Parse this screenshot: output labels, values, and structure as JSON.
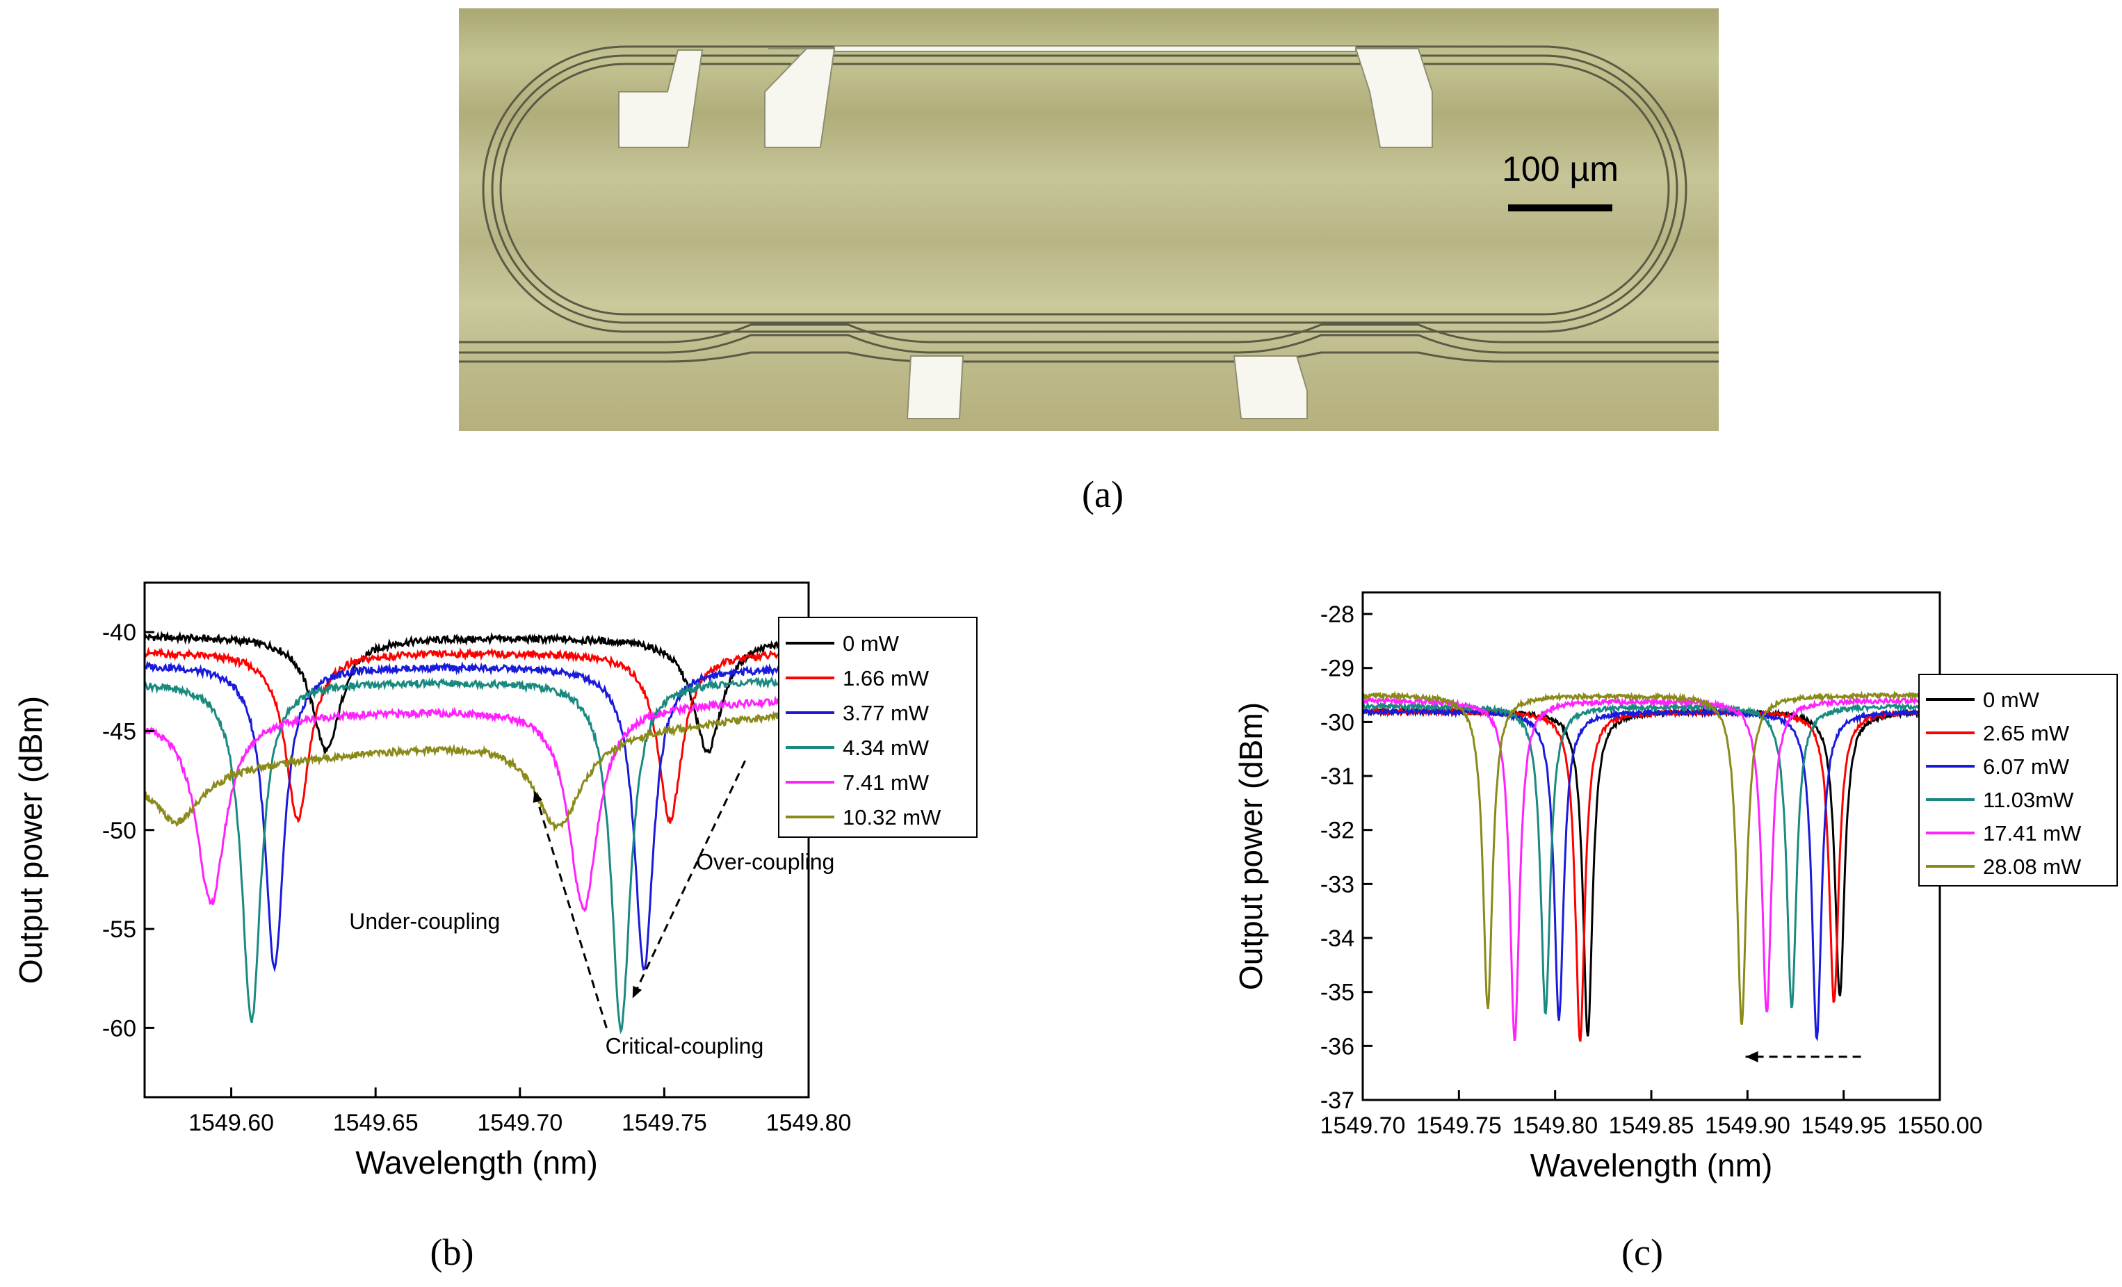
{
  "panel_a": {
    "caption": "(a)",
    "scale_bar_label": "100 µm"
  },
  "panel_b": {
    "caption": "(b)"
  },
  "panel_c": {
    "caption": "(c)"
  },
  "chart_data": [
    {
      "panel": "b",
      "type": "line",
      "xlabel": "Wavelength (nm)",
      "ylabel": "Output power (dBm)",
      "xlim": [
        1549.57,
        1549.8
      ],
      "ylim": [
        -63.5,
        -37.5
      ],
      "xticks": [
        "1549.60",
        "1549.65",
        "1549.70",
        "1549.75",
        "1549.80"
      ],
      "xtick_values": [
        1549.6,
        1549.65,
        1549.7,
        1549.75,
        1549.8
      ],
      "yticks": [
        "-40",
        "-45",
        "-50",
        "-55",
        "-60"
      ],
      "ytick_values": [
        -40,
        -45,
        -50,
        -55,
        -60
      ],
      "legend_position": "top-right",
      "annotations": [
        "Under-coupling",
        "Over-coupling",
        "Critical-coupling"
      ],
      "series": [
        {
          "name": "0 mW",
          "color": "#000000",
          "baseline_left": -40.2,
          "baseline_right": -40.3,
          "dips": [
            {
              "x": 1549.633,
              "depth": -46.0,
              "w": 0.006
            },
            {
              "x": 1549.765,
              "depth": -46.0,
              "w": 0.006
            }
          ]
        },
        {
          "name": "1.66 mW",
          "color": "#ff0000",
          "baseline_left": -41.0,
          "baseline_right": -41.0,
          "dips": [
            {
              "x": 1549.623,
              "depth": -49.5,
              "w": 0.005
            },
            {
              "x": 1549.752,
              "depth": -49.5,
              "w": 0.005
            }
          ]
        },
        {
          "name": "3.77 mW",
          "color": "#1a1adb",
          "baseline_left": -41.6,
          "baseline_right": -41.8,
          "dips": [
            {
              "x": 1549.615,
              "depth": -57.0,
              "w": 0.004
            },
            {
              "x": 1549.743,
              "depth": -57.0,
              "w": 0.004
            }
          ]
        },
        {
          "name": "4.34 mW",
          "color": "#1a8a80",
          "baseline_left": -42.5,
          "baseline_right": -42.4,
          "dips": [
            {
              "x": 1549.607,
              "depth": -59.7,
              "w": 0.004
            },
            {
              "x": 1549.735,
              "depth": -60.0,
              "w": 0.004
            }
          ]
        },
        {
          "name": "7.41 mW",
          "color": "#ff22ff",
          "baseline_left": -44.3,
          "baseline_right": -43.4,
          "dips": [
            {
              "x": 1549.593,
              "depth": -53.7,
              "w": 0.006
            },
            {
              "x": 1549.722,
              "depth": -54.0,
              "w": 0.006
            }
          ]
        },
        {
          "name": "10.32 mW",
          "color": "#8a8a1a",
          "baseline_left": -47.0,
          "baseline_right": -44.0,
          "dips": [
            {
              "x": 1549.581,
              "depth": -49.6,
              "w": 0.01
            },
            {
              "x": 1549.713,
              "depth": -49.8,
              "w": 0.01
            }
          ]
        }
      ]
    },
    {
      "panel": "c",
      "type": "line",
      "xlabel": "Wavelength (nm)",
      "ylabel": "Output power (dBm)",
      "xlim": [
        1549.7,
        1550.0
      ],
      "ylim": [
        -37,
        -27.6
      ],
      "xticks": [
        "1549.70",
        "1549.75",
        "1549.80",
        "1549.85",
        "1549.90",
        "1549.95",
        "1550.00"
      ],
      "xtick_values": [
        1549.7,
        1549.75,
        1549.8,
        1549.85,
        1549.9,
        1549.95,
        1550.0
      ],
      "yticks": [
        "-28",
        "-29",
        "-30",
        "-31",
        "-32",
        "-33",
        "-34",
        "-35",
        "-36",
        "-37"
      ],
      "ytick_values": [
        -28,
        -29,
        -30,
        -31,
        -32,
        -33,
        -34,
        -35,
        -36,
        -37
      ],
      "legend_position": "right",
      "annotations": [],
      "series": [
        {
          "name": "0 mW",
          "color": "#000000",
          "baseline": -29.8,
          "dips": [
            {
              "x": 1549.817,
              "depth": -35.8,
              "w": 0.003
            },
            {
              "x": 1549.948,
              "depth": -35.1,
              "w": 0.003
            }
          ]
        },
        {
          "name": "2.65 mW",
          "color": "#ff0000",
          "baseline": -29.8,
          "dips": [
            {
              "x": 1549.813,
              "depth": -35.9,
              "w": 0.003
            },
            {
              "x": 1549.945,
              "depth": -35.2,
              "w": 0.003
            }
          ]
        },
        {
          "name": "6.07 mW",
          "color": "#1a1adb",
          "baseline": -29.8,
          "dips": [
            {
              "x": 1549.802,
              "depth": -35.5,
              "w": 0.003
            },
            {
              "x": 1549.936,
              "depth": -35.9,
              "w": 0.003
            }
          ]
        },
        {
          "name": "11.03mW",
          "color": "#1a8a80",
          "baseline": -29.7,
          "dips": [
            {
              "x": 1549.795,
              "depth": -35.4,
              "w": 0.003
            },
            {
              "x": 1549.923,
              "depth": -35.3,
              "w": 0.003
            }
          ]
        },
        {
          "name": "17.41 mW",
          "color": "#ff22ff",
          "baseline": -29.6,
          "dips": [
            {
              "x": 1549.779,
              "depth": -35.9,
              "w": 0.003
            },
            {
              "x": 1549.91,
              "depth": -35.4,
              "w": 0.003
            }
          ]
        },
        {
          "name": "28.08 mW",
          "color": "#8a8a1a",
          "baseline": -29.5,
          "dips": [
            {
              "x": 1549.765,
              "depth": -35.3,
              "w": 0.003
            },
            {
              "x": 1549.897,
              "depth": -35.6,
              "w": 0.003
            }
          ]
        }
      ]
    }
  ]
}
